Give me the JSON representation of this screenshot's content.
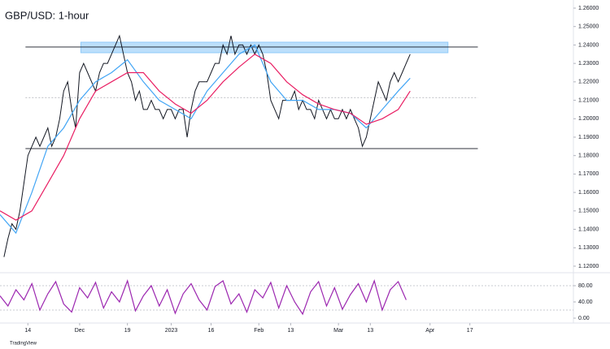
{
  "title": "GBP/USD: 1-hour",
  "footer": "TradingView",
  "chart_data": [
    {
      "type": "line",
      "grid": false,
      "xlim": [
        -7,
        137
      ],
      "ylim": [
        1.1169,
        1.2644
      ],
      "xticks": [
        {
          "value": 0,
          "label": "14"
        },
        {
          "value": 13,
          "label": "Dec"
        },
        {
          "value": 25,
          "label": "19"
        },
        {
          "value": 36,
          "label": "2023"
        },
        {
          "value": 46,
          "label": "16"
        },
        {
          "value": 58,
          "label": "Feb"
        },
        {
          "value": 66,
          "label": "13"
        },
        {
          "value": 78,
          "label": "Mar"
        },
        {
          "value": 86,
          "label": "13"
        },
        {
          "value": 101,
          "label": "Apr"
        },
        {
          "value": 111,
          "label": "17"
        }
      ],
      "yticks": [
        {
          "value": 1.12,
          "label": "1.12000"
        },
        {
          "value": 1.13,
          "label": "1.13000"
        },
        {
          "value": 1.14,
          "label": "1.14000"
        },
        {
          "value": 1.15,
          "label": "1.15000"
        },
        {
          "value": 1.16,
          "label": "1.16000"
        },
        {
          "value": 1.17,
          "label": "1.17000"
        },
        {
          "value": 1.18,
          "label": "1.18000"
        },
        {
          "value": 1.19,
          "label": "1.19000"
        },
        {
          "value": 1.2,
          "label": "1.20000"
        },
        {
          "value": 1.21,
          "label": "1.21000"
        },
        {
          "value": 1.22,
          "label": "1.22000"
        },
        {
          "value": 1.23,
          "label": "1.23000"
        },
        {
          "value": 1.24,
          "label": "1.24000"
        },
        {
          "value": 1.25,
          "label": "1.25000"
        },
        {
          "value": 1.26,
          "label": "1.26000"
        }
      ],
      "series": [
        {
          "color": "#131722",
          "x": [
            -6,
            -5,
            -4,
            -3,
            -2,
            -1,
            0,
            1,
            2,
            3,
            4,
            5,
            6,
            7,
            8,
            9,
            10,
            11,
            12,
            13,
            14,
            15,
            16,
            17,
            18,
            19,
            20,
            21,
            22,
            23,
            24,
            25,
            26,
            27,
            28,
            29,
            30,
            31,
            32,
            33,
            34,
            35,
            36,
            37,
            38,
            39,
            40,
            41,
            42,
            43,
            44,
            45,
            46,
            47,
            48,
            49,
            50,
            51,
            52,
            53,
            54,
            55,
            56,
            57,
            58,
            59,
            60,
            61,
            62,
            63,
            64,
            65,
            66,
            67,
            68,
            69,
            70,
            71,
            72,
            73,
            74,
            75,
            76,
            77,
            78,
            79,
            80,
            81,
            82,
            83,
            84,
            85,
            86,
            87,
            88,
            89,
            90,
            91,
            92,
            93,
            94,
            95,
            96
          ],
          "values": [
            1.125,
            1.135,
            1.143,
            1.14,
            1.15,
            1.165,
            1.18,
            1.185,
            1.19,
            1.185,
            1.19,
            1.195,
            1.185,
            1.19,
            1.2,
            1.215,
            1.22,
            1.205,
            1.195,
            1.225,
            1.23,
            1.225,
            1.22,
            1.215,
            1.225,
            1.23,
            1.23,
            1.235,
            1.24,
            1.245,
            1.235,
            1.225,
            1.22,
            1.21,
            1.215,
            1.205,
            1.205,
            1.21,
            1.205,
            1.205,
            1.2,
            1.205,
            1.205,
            1.2,
            1.205,
            1.205,
            1.19,
            1.205,
            1.215,
            1.22,
            1.22,
            1.22,
            1.225,
            1.23,
            1.23,
            1.24,
            1.235,
            1.245,
            1.235,
            1.24,
            1.24,
            1.235,
            1.24,
            1.235,
            1.24,
            1.235,
            1.225,
            1.21,
            1.205,
            1.2,
            1.21,
            1.21,
            1.21,
            1.215,
            1.205,
            1.21,
            1.205,
            1.205,
            1.2,
            1.21,
            1.205,
            1.2,
            1.205,
            1.2,
            1.2,
            1.205,
            1.2,
            1.205,
            1.2,
            1.195,
            1.185,
            1.19,
            1.2,
            1.21,
            1.22,
            1.215,
            1.21,
            1.22,
            1.225,
            1.22,
            1.225,
            1.23,
            1.235
          ]
        },
        {
          "color": "#42a5f5",
          "x": [
            -7,
            -3,
            1,
            5,
            9,
            13,
            17,
            21,
            25,
            29,
            33,
            37,
            41,
            45,
            49,
            53,
            57,
            61,
            65,
            69,
            73,
            77,
            81,
            85,
            89,
            93,
            96
          ],
          "values": [
            1.148,
            1.138,
            1.16,
            1.185,
            1.195,
            1.21,
            1.22,
            1.225,
            1.232,
            1.22,
            1.21,
            1.205,
            1.2,
            1.215,
            1.225,
            1.235,
            1.24,
            1.22,
            1.21,
            1.21,
            1.205,
            1.205,
            1.203,
            1.195,
            1.205,
            1.215,
            1.222
          ]
        },
        {
          "color": "#e91e63",
          "x": [
            -7,
            -3,
            1,
            5,
            9,
            13,
            17,
            21,
            25,
            29,
            33,
            37,
            41,
            45,
            49,
            53,
            57,
            61,
            65,
            69,
            73,
            77,
            81,
            85,
            89,
            93,
            96
          ],
          "values": [
            1.15,
            1.145,
            1.15,
            1.165,
            1.18,
            1.2,
            1.215,
            1.22,
            1.225,
            1.225,
            1.215,
            1.208,
            1.203,
            1.21,
            1.22,
            1.228,
            1.235,
            1.23,
            1.22,
            1.213,
            1.208,
            1.205,
            1.203,
            1.197,
            1.2,
            1.205,
            1.215
          ]
        }
      ],
      "hlines": [
        {
          "y": 1.2389,
          "x": [
            -0.6,
            113
          ],
          "style": "solid"
        },
        {
          "y": 1.1838,
          "x": [
            -0.6,
            113
          ],
          "style": "solid"
        },
        {
          "y": 1.2115,
          "x": [
            -0.6,
            113
          ],
          "style": "dashed"
        }
      ],
      "zone": {
        "y": [
          1.2358,
          1.2415
        ],
        "x": [
          13.3,
          105.5
        ],
        "color": "#90caf9"
      }
    },
    {
      "type": "line",
      "xlim": [
        -7,
        137
      ],
      "ylim": [
        -6,
        108
      ],
      "yticks": [
        {
          "value": 0,
          "label": "0.00"
        },
        {
          "value": 40,
          "label": "40.00"
        },
        {
          "value": 80,
          "label": "80.00"
        }
      ],
      "levels": [
        80,
        20
      ],
      "series": [
        {
          "color": "#9c27b0",
          "x": [
            -7,
            -5,
            -3,
            -1,
            1,
            3,
            5,
            7,
            9,
            11,
            13,
            15,
            17,
            19,
            21,
            23,
            25,
            27,
            29,
            31,
            33,
            35,
            37,
            39,
            41,
            43,
            45,
            47,
            49,
            51,
            53,
            55,
            57,
            59,
            61,
            63,
            65,
            67,
            69,
            71,
            73,
            75,
            77,
            79,
            81,
            83,
            85,
            87,
            89,
            91,
            93,
            95
          ],
          "values": [
            55,
            30,
            70,
            45,
            85,
            20,
            60,
            90,
            35,
            15,
            75,
            50,
            88,
            25,
            65,
            40,
            92,
            18,
            55,
            80,
            30,
            70,
            12,
            60,
            85,
            45,
            20,
            78,
            92,
            35,
            60,
            15,
            70,
            50,
            88,
            25,
            80,
            40,
            10,
            65,
            90,
            30,
            75,
            22,
            58,
            85,
            40,
            92,
            20,
            70,
            90,
            45
          ]
        }
      ]
    }
  ]
}
